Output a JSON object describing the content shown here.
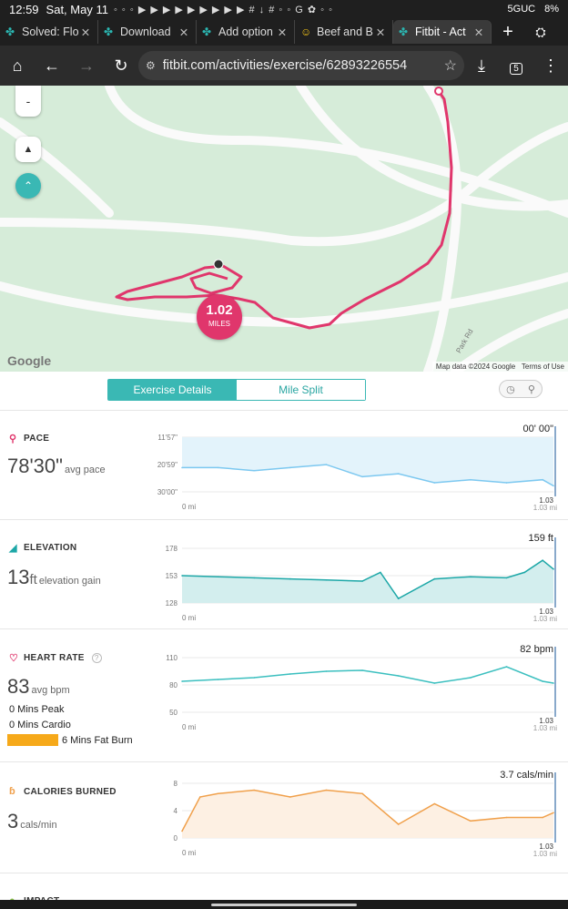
{
  "status": {
    "time": "12:59",
    "date": "Sat, May 11",
    "network": "5GUC",
    "battery": "8%"
  },
  "tabs": [
    {
      "title": "Solved: Flo",
      "active": false
    },
    {
      "title": "Download",
      "active": false
    },
    {
      "title": "Add option",
      "active": false
    },
    {
      "title": "Beef and B",
      "active": false
    },
    {
      "title": "Fitbit - Act",
      "active": true
    }
  ],
  "browser": {
    "url": "fitbit.com/activities/exercise/62893226554",
    "tab_count": "5"
  },
  "map": {
    "zoom_out": "-",
    "distance_value": "1.02",
    "distance_unit": "MILES",
    "road_label": "Park Rd",
    "google": "Google",
    "attribution": "Map data ©2024 Google",
    "terms": "Terms of Use"
  },
  "view_toggle": {
    "details": "Exercise Details",
    "split": "Mile Split"
  },
  "pace": {
    "title": "PACE",
    "value": "78'30\"",
    "unit": "avg pace",
    "current": "00' 00\"",
    "y_ticks": [
      "11'57\"",
      "20'59\"",
      "30'00\""
    ],
    "x_start": "0 mi",
    "x_end": "1.03",
    "x_end_unit": "1.03 mi",
    "color": "#7cc8f0"
  },
  "elevation": {
    "title": "ELEVATION",
    "value": "13",
    "value_unit": "ft",
    "unit": "elevation gain",
    "current": "159 ft",
    "y_ticks": [
      "178",
      "153",
      "128"
    ],
    "x_start": "0 mi",
    "x_end": "1.03",
    "x_end_unit": "1.03 mi",
    "color": "#1ca7a7"
  },
  "heart": {
    "title": "HEART RATE",
    "value": "83",
    "unit": "avg bpm",
    "current": "82 bpm",
    "zones": [
      "0 Mins Peak",
      "0 Mins Cardio",
      "6 Mins Fat Burn"
    ],
    "y_ticks": [
      "110",
      "80",
      "50"
    ],
    "x_start": "0 mi",
    "x_end": "1.03",
    "x_end_unit": "1.03 mi",
    "colors": {
      "teal": "#3bbfbf",
      "orange": "#f5a623"
    }
  },
  "calories": {
    "title": "CALORIES BURNED",
    "value": "3",
    "unit": "cals/min",
    "current": "3.7 cals/min",
    "y_ticks": [
      "8",
      "4",
      "0"
    ],
    "x_start": "0 mi",
    "x_end": "1.03",
    "x_end_unit": "1.03 mi",
    "color": "#f0a04b"
  },
  "next_section": {
    "title": "IMPACT"
  },
  "chart_data": [
    {
      "type": "area",
      "ylabel": "",
      "x": [
        0,
        0.1,
        0.2,
        0.3,
        0.4,
        0.5,
        0.6,
        0.7,
        0.8,
        0.9,
        1.0,
        1.03
      ],
      "series": [
        {
          "values": [
            22,
            22,
            23,
            22,
            21,
            25,
            24,
            27,
            26,
            27,
            26,
            28
          ]
        }
      ],
      "ylim": [
        11.95,
        30
      ]
    },
    {
      "type": "area",
      "x": [
        0,
        0.1,
        0.2,
        0.3,
        0.4,
        0.5,
        0.55,
        0.6,
        0.7,
        0.8,
        0.9,
        0.95,
        1.0,
        1.03
      ],
      "series": [
        {
          "values": [
            153,
            152,
            151,
            150,
            149,
            148,
            156,
            132,
            150,
            152,
            151,
            156,
            167,
            159
          ]
        }
      ],
      "ylim": [
        128,
        178
      ]
    },
    {
      "type": "line",
      "x": [
        0,
        0.1,
        0.2,
        0.3,
        0.4,
        0.5,
        0.6,
        0.7,
        0.8,
        0.9,
        1.0,
        1.03
      ],
      "series": [
        {
          "values": [
            84,
            86,
            88,
            92,
            95,
            96,
            90,
            82,
            88,
            100,
            84,
            82
          ]
        }
      ],
      "ylim": [
        50,
        110
      ]
    },
    {
      "type": "area",
      "x": [
        0,
        0.05,
        0.1,
        0.2,
        0.3,
        0.4,
        0.5,
        0.6,
        0.7,
        0.8,
        0.9,
        1.0,
        1.03
      ],
      "series": [
        {
          "values": [
            1,
            6,
            6.5,
            7,
            6,
            7,
            6.5,
            2,
            5,
            2.5,
            3,
            3,
            3.7
          ]
        }
      ],
      "ylim": [
        0,
        8
      ]
    }
  ]
}
